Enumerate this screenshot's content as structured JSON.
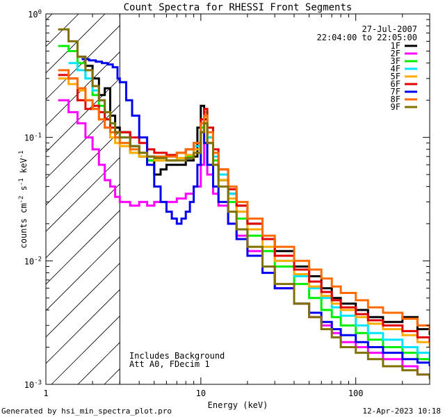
{
  "chart_data": {
    "type": "line",
    "title": "Count Spectra for RHESSI Front Segments",
    "xlabel": "Energy (keV)",
    "ylabel_parts": {
      "base": "counts cm",
      "exp1": "-2",
      "mid1": " s",
      "exp2": "-1",
      "mid2": " keV",
      "exp3": "-1"
    },
    "xscale": "log",
    "yscale": "log",
    "xlim": [
      1,
      300
    ],
    "ylim": [
      0.001,
      1
    ],
    "x_ticks": [
      {
        "value": 1,
        "label": "1"
      },
      {
        "value": 10,
        "label": "10"
      },
      {
        "value": 100,
        "label": "100"
      }
    ],
    "y_ticks": [
      {
        "value": 0.001,
        "base": "10",
        "exp": "-3"
      },
      {
        "value": 0.01,
        "base": "10",
        "exp": "-2"
      },
      {
        "value": 0.1,
        "base": "10",
        "exp": "-1"
      },
      {
        "value": 1,
        "base": "10",
        "exp": "0"
      }
    ],
    "threshold_energy": 3,
    "date": "27-Jul-2007",
    "time_range": "22:04:00 to 22:05:00",
    "annotations": [
      "Includes Background",
      "Att A0, FDecim 1"
    ],
    "series": [
      {
        "name": "1F",
        "color": "#000000",
        "x": [
          1.4,
          1.6,
          1.8,
          2.0,
          2.2,
          2.4,
          2.6,
          2.8,
          3.0,
          3.5,
          4.0,
          4.5,
          5,
          5.5,
          6,
          7,
          8,
          9,
          9.5,
          10,
          10.5,
          11,
          12,
          13,
          15,
          17,
          20,
          25,
          30,
          40,
          50,
          60,
          70,
          80,
          100,
          120,
          150,
          200,
          250,
          300
        ],
        "y": [
          0.5,
          0.45,
          0.38,
          0.3,
          0.22,
          0.25,
          0.15,
          0.12,
          0.11,
          0.085,
          0.07,
          0.065,
          0.05,
          0.055,
          0.06,
          0.06,
          0.065,
          0.07,
          0.12,
          0.18,
          0.14,
          0.09,
          0.06,
          0.045,
          0.035,
          0.028,
          0.02,
          0.015,
          0.012,
          0.009,
          0.0075,
          0.006,
          0.005,
          0.0045,
          0.004,
          0.0035,
          0.0032,
          0.0035,
          0.0028,
          0.0025
        ]
      },
      {
        "name": "2F",
        "color": "#ff00ff",
        "x": [
          1.2,
          1.4,
          1.6,
          1.8,
          2.0,
          2.2,
          2.4,
          2.6,
          2.8,
          3.0,
          3.5,
          4.0,
          4.5,
          5,
          6,
          7,
          8,
          9,
          10,
          10.5,
          11,
          12,
          13,
          15,
          17,
          20,
          25,
          30,
          40,
          50,
          60,
          70,
          80,
          100,
          120,
          150,
          200,
          250,
          300
        ],
        "y": [
          0.2,
          0.16,
          0.13,
          0.1,
          0.08,
          0.06,
          0.045,
          0.04,
          0.033,
          0.03,
          0.028,
          0.03,
          0.028,
          0.03,
          0.03,
          0.032,
          0.035,
          0.04,
          0.06,
          0.09,
          0.05,
          0.035,
          0.028,
          0.02,
          0.016,
          0.012,
          0.009,
          0.006,
          0.0045,
          0.0035,
          0.003,
          0.0026,
          0.0022,
          0.002,
          0.0018,
          0.0016,
          0.0014,
          0.0012,
          0.0011
        ]
      },
      {
        "name": "3F",
        "color": "#00ee00",
        "x": [
          1.2,
          1.4,
          1.6,
          1.8,
          2.0,
          2.2,
          2.4,
          2.6,
          2.8,
          3.0,
          3.5,
          4.0,
          4.5,
          5,
          6,
          7,
          8,
          9,
          10,
          10.5,
          11,
          12,
          13,
          15,
          17,
          20,
          25,
          30,
          40,
          50,
          60,
          70,
          80,
          100,
          120,
          150,
          200,
          250,
          300
        ],
        "y": [
          0.55,
          0.5,
          0.4,
          0.3,
          0.22,
          0.18,
          0.14,
          0.11,
          0.1,
          0.09,
          0.075,
          0.07,
          0.065,
          0.065,
          0.065,
          0.068,
          0.07,
          0.08,
          0.12,
          0.16,
          0.1,
          0.065,
          0.045,
          0.03,
          0.022,
          0.016,
          0.012,
          0.009,
          0.0065,
          0.005,
          0.004,
          0.0035,
          0.003,
          0.0026,
          0.0023,
          0.002,
          0.0018,
          0.0016,
          0.0014
        ]
      },
      {
        "name": "4F",
        "color": "#00e5ff",
        "x": [
          1.4,
          1.6,
          1.8,
          2.0,
          2.2,
          2.4,
          2.6,
          2.8,
          3.0,
          3.5,
          4.0,
          4.5,
          5,
          6,
          7,
          8,
          9,
          10,
          10.5,
          11,
          12,
          13,
          15,
          17,
          20,
          25,
          30,
          40,
          50,
          60,
          70,
          80,
          100,
          120,
          150,
          200,
          250,
          300
        ],
        "y": [
          0.4,
          0.35,
          0.3,
          0.24,
          0.2,
          0.16,
          0.13,
          0.11,
          0.1,
          0.085,
          0.075,
          0.07,
          0.07,
          0.07,
          0.075,
          0.08,
          0.085,
          0.13,
          0.15,
          0.1,
          0.07,
          0.05,
          0.035,
          0.025,
          0.018,
          0.013,
          0.01,
          0.0075,
          0.006,
          0.005,
          0.0042,
          0.0036,
          0.003,
          0.0026,
          0.0023,
          0.002,
          0.0018,
          0.0016
        ]
      },
      {
        "name": "5F",
        "color": "#ffaa00",
        "x": [
          1.2,
          1.4,
          1.6,
          1.8,
          2.0,
          2.2,
          2.4,
          2.6,
          2.8,
          3.0,
          3.5,
          4.0,
          4.5,
          5,
          6,
          7,
          8,
          9,
          10,
          10.5,
          11,
          12,
          13,
          15,
          17,
          20,
          25,
          30,
          40,
          50,
          60,
          70,
          80,
          100,
          120,
          150,
          200,
          250,
          300
        ],
        "y": [
          0.3,
          0.27,
          0.24,
          0.2,
          0.17,
          0.14,
          0.12,
          0.1,
          0.09,
          0.085,
          0.075,
          0.07,
          0.07,
          0.065,
          0.065,
          0.068,
          0.072,
          0.08,
          0.11,
          0.13,
          0.09,
          0.06,
          0.045,
          0.032,
          0.025,
          0.018,
          0.013,
          0.01,
          0.0078,
          0.0062,
          0.0052,
          0.0045,
          0.004,
          0.0035,
          0.0031,
          0.0028,
          0.0025,
          0.0022,
          0.002
        ]
      },
      {
        "name": "6F",
        "color": "#e00000",
        "x": [
          1.2,
          1.4,
          1.6,
          1.8,
          2.0,
          2.2,
          2.4,
          2.6,
          2.8,
          3.0,
          3.5,
          4.0,
          4.5,
          5,
          6,
          7,
          8,
          9,
          10,
          10.5,
          11,
          12,
          13,
          15,
          17,
          20,
          25,
          30,
          40,
          50,
          60,
          70,
          80,
          100,
          120,
          150,
          200,
          250,
          300
        ],
        "y": [
          0.32,
          0.3,
          0.2,
          0.17,
          0.18,
          0.16,
          0.14,
          0.12,
          0.11,
          0.11,
          0.1,
          0.09,
          0.08,
          0.075,
          0.072,
          0.075,
          0.08,
          0.09,
          0.14,
          0.17,
          0.12,
          0.08,
          0.055,
          0.038,
          0.028,
          0.02,
          0.015,
          0.011,
          0.0085,
          0.0068,
          0.0056,
          0.0048,
          0.0042,
          0.0037,
          0.0033,
          0.003,
          0.0027,
          0.0024,
          0.0022
        ]
      },
      {
        "name": "7F",
        "color": "#0000ee",
        "x": [
          1.7,
          1.9,
          2.1,
          2.3,
          2.5,
          2.7,
          2.9,
          3.0,
          3.3,
          3.6,
          4.0,
          4.5,
          5,
          5.5,
          6,
          6.5,
          7,
          7.5,
          8,
          8.5,
          9,
          9.5,
          10,
          10.5,
          11,
          12,
          13,
          15,
          17,
          20,
          25,
          30,
          40,
          50,
          60,
          70,
          80,
          100,
          120,
          150,
          200,
          250,
          300
        ],
        "y": [
          0.43,
          0.42,
          0.41,
          0.4,
          0.39,
          0.37,
          0.3,
          0.28,
          0.2,
          0.15,
          0.1,
          0.06,
          0.04,
          0.03,
          0.025,
          0.022,
          0.02,
          0.022,
          0.025,
          0.03,
          0.04,
          0.06,
          0.11,
          0.09,
          0.06,
          0.04,
          0.03,
          0.02,
          0.015,
          0.011,
          0.008,
          0.006,
          0.0045,
          0.0038,
          0.0032,
          0.0028,
          0.0025,
          0.0022,
          0.002,
          0.0018,
          0.0016,
          0.0015,
          0.0014
        ]
      },
      {
        "name": "8F",
        "color": "#ff6a00",
        "x": [
          1.2,
          1.4,
          1.6,
          1.8,
          2.0,
          2.2,
          2.4,
          2.6,
          2.8,
          3.0,
          3.5,
          4.0,
          4.5,
          5,
          6,
          7,
          8,
          9,
          10,
          10.5,
          11,
          12,
          13,
          15,
          17,
          20,
          25,
          30,
          40,
          50,
          60,
          70,
          80,
          100,
          120,
          150,
          200,
          250,
          300
        ],
        "y": [
          0.35,
          0.3,
          0.25,
          0.2,
          0.17,
          0.14,
          0.12,
          0.11,
          0.1,
          0.09,
          0.08,
          0.075,
          0.07,
          0.07,
          0.07,
          0.075,
          0.08,
          0.09,
          0.13,
          0.15,
          0.11,
          0.075,
          0.055,
          0.04,
          0.03,
          0.022,
          0.016,
          0.013,
          0.01,
          0.0085,
          0.0072,
          0.0062,
          0.0055,
          0.0048,
          0.0042,
          0.0038,
          0.0034,
          0.003,
          0.0027
        ]
      },
      {
        "name": "9F",
        "color": "#807000",
        "x": [
          1.2,
          1.4,
          1.6,
          1.8,
          2.0,
          2.2,
          2.4,
          2.6,
          2.8,
          3.0,
          3.5,
          4.0,
          4.5,
          5,
          6,
          7,
          8,
          9,
          10,
          10.5,
          11,
          12,
          13,
          15,
          17,
          20,
          25,
          30,
          40,
          50,
          60,
          70,
          80,
          100,
          120,
          150,
          200,
          250,
          300
        ],
        "y": [
          0.75,
          0.6,
          0.45,
          0.35,
          0.26,
          0.2,
          0.16,
          0.13,
          0.11,
          0.1,
          0.085,
          0.075,
          0.07,
          0.068,
          0.065,
          0.065,
          0.068,
          0.075,
          0.11,
          0.13,
          0.09,
          0.06,
          0.04,
          0.025,
          0.018,
          0.013,
          0.009,
          0.0065,
          0.0045,
          0.0035,
          0.0028,
          0.0024,
          0.002,
          0.0018,
          0.0016,
          0.0014,
          0.0013,
          0.0012,
          0.0011
        ]
      }
    ]
  },
  "footer": {
    "left": "Generated by hsi_min_spectra_plot.pro",
    "right": "12-Apr-2023 10:18"
  }
}
